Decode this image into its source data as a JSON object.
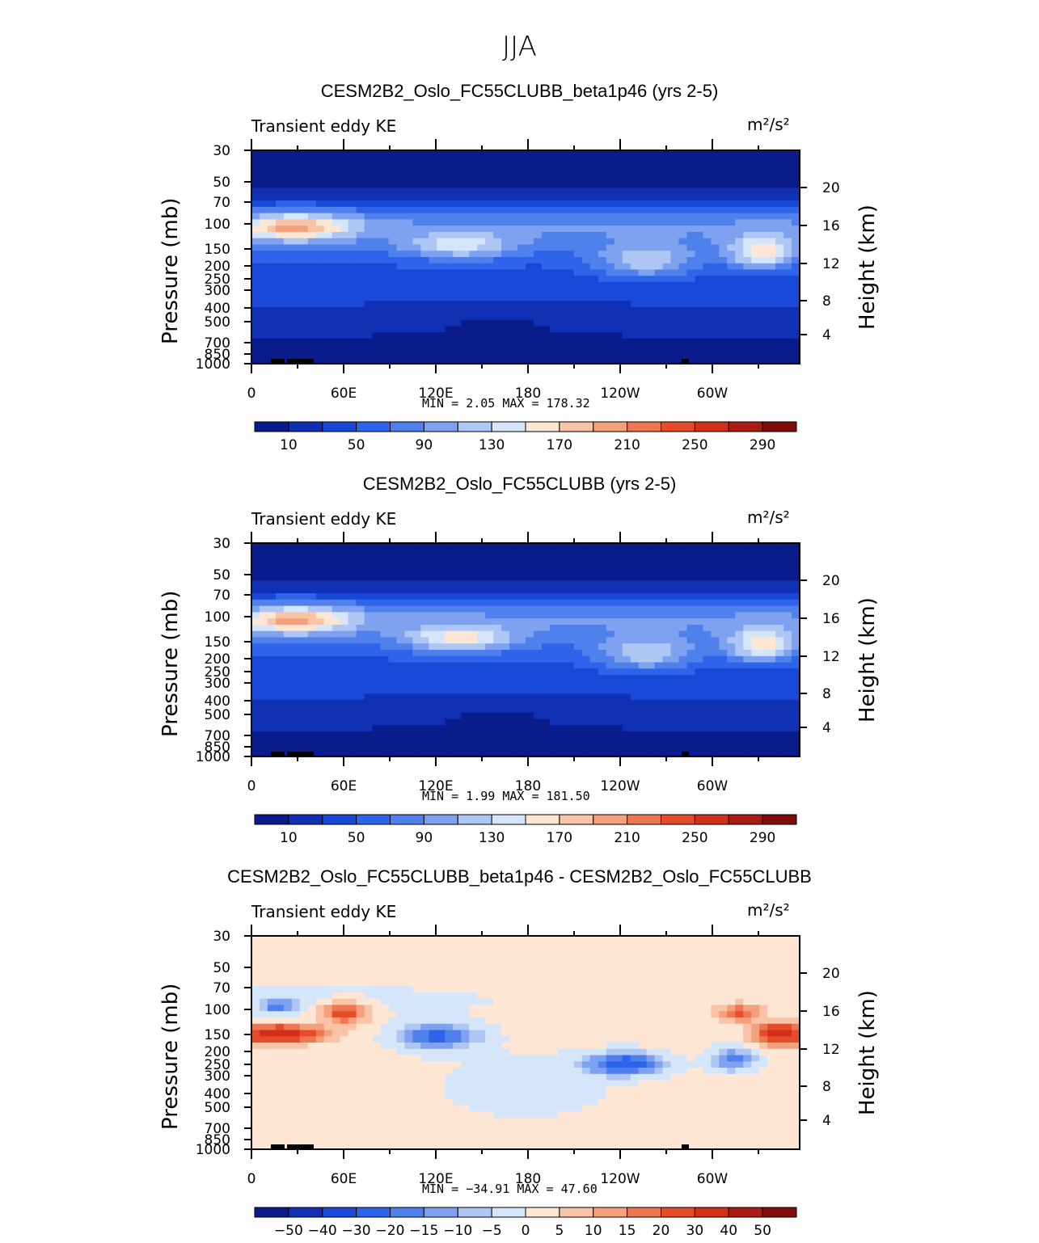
{
  "page_title": "JJA",
  "chart_data": [
    {
      "type": "heatmap",
      "title": "CESM2B2_Oslo_FC55CLUBB_beta1p46 (yrs 2-5)",
      "left_label": "Transient eddy KE",
      "units": "m²/s²",
      "xlabel": "",
      "ylabel": "Pressure (mb)",
      "y2label": "Height (km)",
      "x_ticks": [
        "0",
        "60E",
        "120E",
        "180",
        "120W",
        "60W"
      ],
      "y_ticks": [
        "30",
        "50",
        "70",
        "100",
        "150",
        "200",
        "250",
        "300",
        "400",
        "500",
        "700",
        "850",
        "1000"
      ],
      "y2_ticks": [
        "20",
        "16",
        "12",
        "8",
        "4"
      ],
      "min_label": "MIN =",
      "min": "2.05",
      "max_label": "MAX =",
      "max": "178.32",
      "colorbar_labels": [
        "10",
        "50",
        "90",
        "130",
        "170",
        "210",
        "250",
        "290"
      ],
      "colorbar_colors": [
        "#0a1c8c",
        "#1030b4",
        "#1848d8",
        "#2e64ea",
        "#4f80ec",
        "#7ea2f0",
        "#aec6f4",
        "#d6e6fa",
        "#fde6d4",
        "#f9c4a6",
        "#f4a07c",
        "#ee7650",
        "#e44c2a",
        "#d2301a",
        "#a81c14",
        "#800c0c"
      ],
      "field": "mean"
    },
    {
      "type": "heatmap",
      "title": "CESM2B2_Oslo_FC55CLUBB (yrs 2-5)",
      "left_label": "Transient eddy KE",
      "units": "m²/s²",
      "xlabel": "",
      "ylabel": "Pressure (mb)",
      "y2label": "Height (km)",
      "x_ticks": [
        "0",
        "60E",
        "120E",
        "180",
        "120W",
        "60W"
      ],
      "y_ticks": [
        "30",
        "50",
        "70",
        "100",
        "150",
        "200",
        "250",
        "300",
        "400",
        "500",
        "700",
        "850",
        "1000"
      ],
      "y2_ticks": [
        "20",
        "16",
        "12",
        "8",
        "4"
      ],
      "min_label": "MIN =",
      "min": "1.99",
      "max_label": "MAX =",
      "max": "181.50",
      "colorbar_labels": [
        "10",
        "50",
        "90",
        "130",
        "170",
        "210",
        "250",
        "290"
      ],
      "colorbar_colors": [
        "#0a1c8c",
        "#1030b4",
        "#1848d8",
        "#2e64ea",
        "#4f80ec",
        "#7ea2f0",
        "#aec6f4",
        "#d6e6fa",
        "#fde6d4",
        "#f9c4a6",
        "#f4a07c",
        "#ee7650",
        "#e44c2a",
        "#d2301a",
        "#a81c14",
        "#800c0c"
      ],
      "field": "mean"
    },
    {
      "type": "heatmap",
      "title": "CESM2B2_Oslo_FC55CLUBB_beta1p46 - CESM2B2_Oslo_FC55CLUBB",
      "left_label": "Transient eddy KE",
      "units": "m²/s²",
      "xlabel": "",
      "ylabel": "Pressure (mb)",
      "y2label": "Height (km)",
      "x_ticks": [
        "0",
        "60E",
        "120E",
        "180",
        "120W",
        "60W"
      ],
      "y_ticks": [
        "30",
        "50",
        "70",
        "100",
        "150",
        "200",
        "250",
        "300",
        "400",
        "500",
        "700",
        "850",
        "1000"
      ],
      "y2_ticks": [
        "20",
        "16",
        "12",
        "8",
        "4"
      ],
      "min_label": "MIN =",
      "min": "−34.91",
      "max_label": "MAX =",
      "max": "47.60",
      "colorbar_labels": [
        "−50",
        "−40",
        "−30",
        "−20",
        "−15",
        "−10",
        "−5",
        "0",
        "5",
        "10",
        "15",
        "20",
        "30",
        "40",
        "50"
      ],
      "colorbar_colors": [
        "#0a1c8c",
        "#1030b4",
        "#1848d8",
        "#2e64ea",
        "#4f80ec",
        "#7ea2f0",
        "#aec6f4",
        "#d6e6fa",
        "#fde6d4",
        "#f9c4a6",
        "#f4a07c",
        "#ee7650",
        "#e44c2a",
        "#d2301a",
        "#a81c14",
        "#800c0c"
      ],
      "field": "diff"
    }
  ]
}
